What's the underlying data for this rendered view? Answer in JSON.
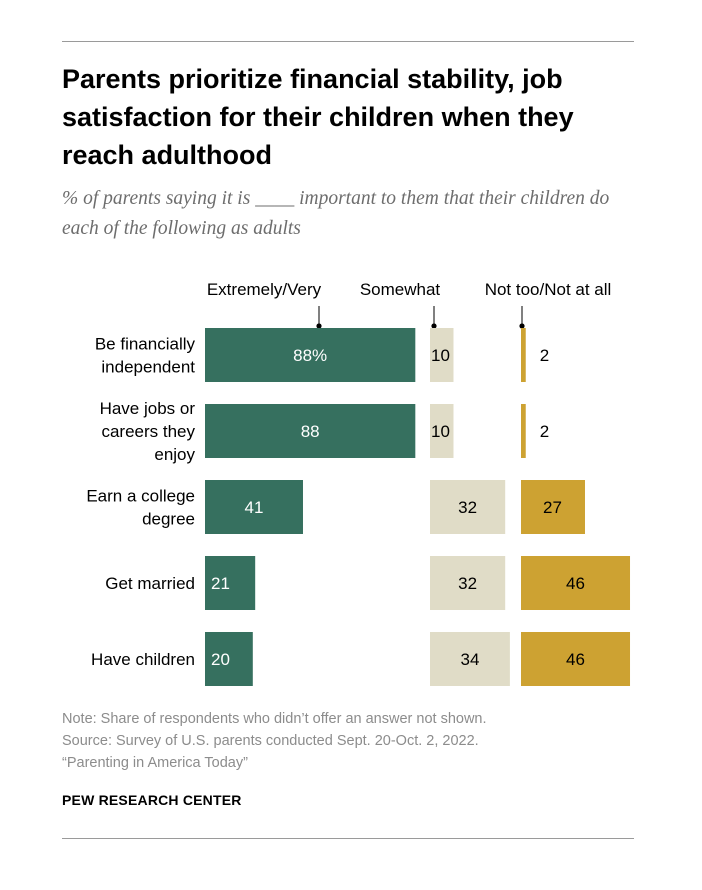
{
  "title": "Parents prioritize financial stability, job satisfaction for their children when they reach adulthood",
  "subtitle": "% of parents saying it is ____ important to them that their children do each of the following as adults",
  "chart_data": {
    "type": "bar",
    "title": "Parents prioritize financial stability, job satisfaction for their children when they reach adulthood",
    "subtitle": "% of parents saying it is ____ important to them that their children do each of the following as adults",
    "categories": [
      [
        "Be financially",
        "independent"
      ],
      [
        "Have jobs or",
        "careers they",
        "enjoy"
      ],
      [
        "Earn a college",
        "degree"
      ],
      [
        "Get married"
      ],
      [
        "Have children"
      ]
    ],
    "series": [
      {
        "name": "Extremely/Very",
        "values": [
          88,
          88,
          41,
          21,
          20
        ],
        "labels": [
          "88%",
          "88",
          "41",
          "21",
          "20"
        ],
        "color": "#36705f"
      },
      {
        "name": "Somewhat",
        "values": [
          10,
          10,
          32,
          32,
          34
        ],
        "labels": [
          "10",
          "10",
          "32",
          "32",
          "34"
        ],
        "color": "#e0dcc7"
      },
      {
        "name": "Not too/Not at all",
        "values": [
          2,
          2,
          27,
          46,
          46
        ],
        "labels": [
          "2",
          "2",
          "27",
          "46",
          "46"
        ],
        "color": "#cda232"
      }
    ],
    "legend": "top"
  },
  "notes": [
    "Note: Share of respondents who didn’t offer an answer not shown.",
    "Source: Survey of U.S. parents conducted Sept. 20-Oct. 2, 2022.",
    "“Parenting in America Today”"
  ],
  "source_org": "PEW RESEARCH CENTER"
}
